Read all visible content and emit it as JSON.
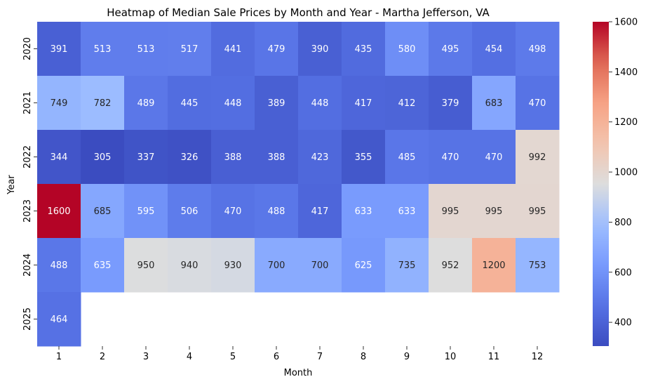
{
  "chart_data": {
    "type": "heatmap",
    "title": "Heatmap of Median Sale Prices by Month and Year - Martha Jefferson, VA",
    "xlabel": "Month",
    "ylabel": "Year",
    "x": [
      "1",
      "2",
      "3",
      "4",
      "5",
      "6",
      "7",
      "8",
      "9",
      "10",
      "11",
      "12"
    ],
    "y": [
      "2020",
      "2021",
      "2022",
      "2023",
      "2024",
      "2025"
    ],
    "values": [
      [
        391,
        513,
        513,
        517,
        441,
        479,
        390,
        435,
        580,
        495,
        454,
        498
      ],
      [
        749,
        782,
        489,
        445,
        448,
        389,
        448,
        417,
        412,
        379,
        683,
        470
      ],
      [
        344,
        305,
        337,
        326,
        388,
        388,
        423,
        355,
        485,
        470,
        470,
        992
      ],
      [
        1600,
        685,
        595,
        506,
        470,
        488,
        417,
        633,
        633,
        995,
        995,
        995
      ],
      [
        488,
        635,
        950,
        940,
        930,
        700,
        700,
        625,
        735,
        952,
        1200,
        753
      ],
      [
        464,
        null,
        null,
        null,
        null,
        null,
        null,
        null,
        null,
        null,
        null,
        null
      ]
    ],
    "colorbar": {
      "min": 305,
      "max": 1600,
      "ticks": [
        400,
        600,
        800,
        1000,
        1200,
        1400,
        1600
      ]
    },
    "colormap": "coolwarm"
  }
}
